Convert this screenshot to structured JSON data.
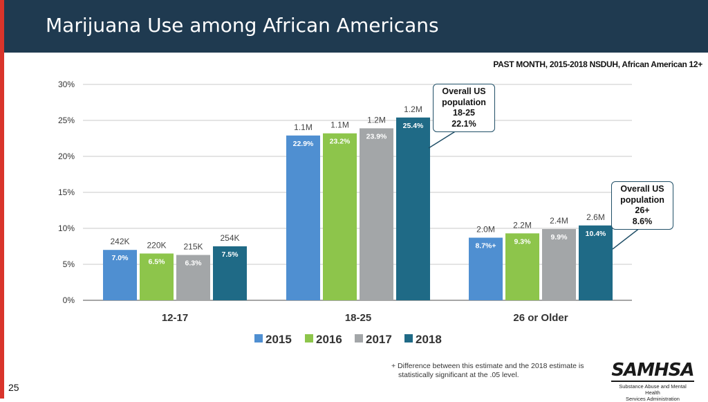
{
  "slide": {
    "title": "Marijuana Use among African Americans",
    "subtitle": "PAST MONTH, 2015-2018 NSDUH, African American 12+",
    "slide_number": "25"
  },
  "callouts": [
    {
      "lines": [
        "Overall US",
        "population",
        "18-25",
        "22.1%"
      ]
    },
    {
      "lines": [
        "Overall US",
        "population",
        "26+",
        "8.6%"
      ]
    }
  ],
  "footnote": {
    "line1": "+ Difference between this estimate and the 2018 estimate is",
    "line2": "statistically significant at the .05 level."
  },
  "logo": {
    "name": "SAMHSA",
    "sub1": "Substance Abuse and Mental Health",
    "sub2": "Services Administration"
  },
  "colors": {
    "2015": "#4f8fd1",
    "2016": "#8dc54b",
    "2017": "#a3a6a8",
    "2018": "#1f6a86"
  },
  "chart_data": {
    "type": "bar",
    "title": "",
    "ylim": [
      0,
      30
    ],
    "yticks": [
      0,
      5,
      10,
      15,
      20,
      25,
      30
    ],
    "ytick_labels": [
      "0%",
      "5%",
      "10%",
      "15%",
      "20%",
      "25%",
      "30%"
    ],
    "categories": [
      "12-17",
      "18-25",
      "26 or Older"
    ],
    "series": [
      {
        "name": "2015",
        "values": [
          7.0,
          22.9,
          8.7
        ],
        "labels": [
          "7.0%",
          "22.9%",
          "8.7%+"
        ],
        "counts": [
          "242K",
          "1.1M",
          "2.0M"
        ]
      },
      {
        "name": "2016",
        "values": [
          6.5,
          23.2,
          9.3
        ],
        "labels": [
          "6.5%",
          "23.2%",
          "9.3%"
        ],
        "counts": [
          "220K",
          "1.1M",
          "2.2M"
        ]
      },
      {
        "name": "2017",
        "values": [
          6.3,
          23.9,
          9.9
        ],
        "labels": [
          "6.3%",
          "23.9%",
          "9.9%"
        ],
        "counts": [
          "215K",
          "1.2M",
          "2.4M"
        ]
      },
      {
        "name": "2018",
        "values": [
          7.5,
          25.4,
          10.4
        ],
        "labels": [
          "7.5%",
          "25.4%",
          "10.4%"
        ],
        "counts": [
          "254K",
          "1.2M",
          "2.6M"
        ]
      }
    ],
    "legend": "bottom-center",
    "grid": true
  }
}
